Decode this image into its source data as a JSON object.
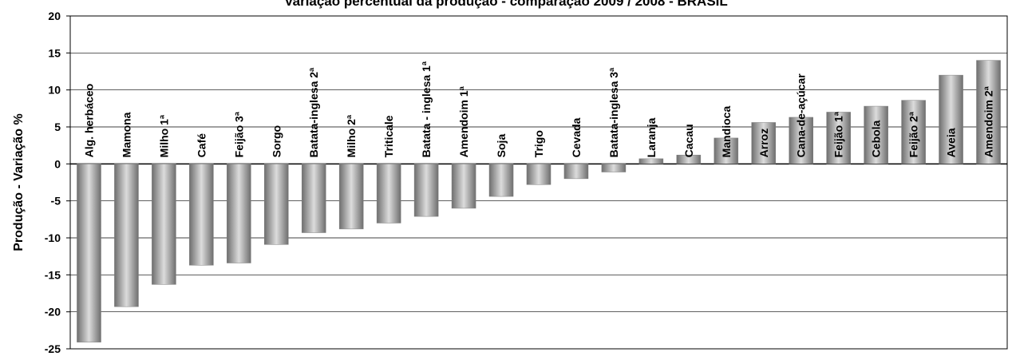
{
  "chart_data": {
    "type": "bar",
    "title": "Variação percentual  da produção - comparação  2009 / 2008 -  BRASIL",
    "xlabel": "",
    "ylabel": "Produção - Variação %",
    "ylim": [
      -25,
      20
    ],
    "yticks": [
      20,
      15,
      10,
      5,
      0,
      -5,
      -10,
      -15,
      -20,
      -25
    ],
    "grid": true,
    "legend": "none",
    "bar_color": "#999999",
    "categories": [
      "Alg. herbáceo",
      "Mamona",
      "Milho 1ª",
      "Café",
      "Feijão 3ª",
      "Sorgo",
      "Batata-inglesa 2ª",
      "Milho 2ª",
      "Triticale",
      "Batata - inglesa 1ª",
      "Amendoim 1ª",
      "Soja",
      "Trigo",
      "Cevada",
      "Batata-inglesa 3ª",
      "Laranja",
      "Cacau",
      "Mandioca",
      "Arroz",
      "Cana-de-açúcar",
      "Feijão 1ª",
      "Cebola",
      "Feijão 2ª",
      "Aveia",
      "Amendoim 2ª"
    ],
    "values": [
      -24.1,
      -19.3,
      -16.3,
      -13.7,
      -13.4,
      -10.9,
      -9.3,
      -8.8,
      -8.0,
      -7.1,
      -6.0,
      -4.4,
      -2.8,
      -2.0,
      -1.1,
      0.7,
      1.2,
      3.5,
      5.6,
      6.3,
      7.0,
      7.8,
      8.6,
      12.0,
      14.0
    ]
  }
}
